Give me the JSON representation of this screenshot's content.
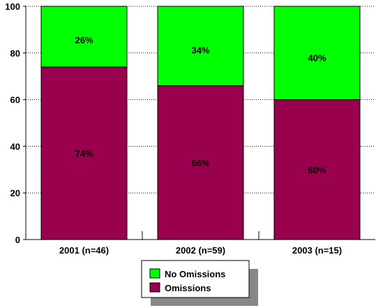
{
  "chart_data": {
    "type": "bar",
    "stacked": true,
    "categories": [
      "2001 (n=46)",
      "2002 (n=59)",
      "2003 (n=15)"
    ],
    "series": [
      {
        "name": "Omissions",
        "values": [
          74,
          66,
          60
        ],
        "labels": [
          "74%",
          "66%",
          "60%"
        ],
        "color": "#99004d"
      },
      {
        "name": "No Omissions",
        "values": [
          26,
          34,
          40
        ],
        "labels": [
          "26%",
          "34%",
          "40%"
        ],
        "color": "#00ff00"
      }
    ],
    "ylim": [
      0,
      100
    ],
    "yticks": [
      "0",
      "20",
      "40",
      "60",
      "80",
      "100"
    ],
    "grid": true,
    "legend_position": "bottom",
    "legend_order": [
      "No Omissions",
      "Omissions"
    ]
  }
}
